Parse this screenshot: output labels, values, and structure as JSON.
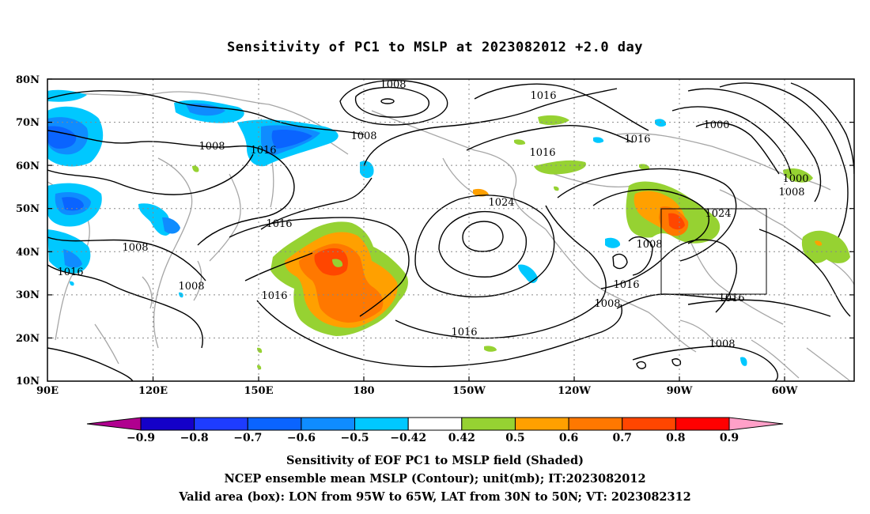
{
  "title": "Sensitivity of PC1 to MSLP at 2023082012 +2.0 day",
  "lat_labels": [
    "80N",
    "70N",
    "60N",
    "50N",
    "40N",
    "30N",
    "20N",
    "10N"
  ],
  "lon_labels": [
    "90E",
    "120E",
    "150E",
    "180",
    "150W",
    "120W",
    "90W",
    "60W"
  ],
  "colorbar": {
    "labels": [
      "-0.9",
      "-0.8",
      "-0.7",
      "-0.6",
      "-0.5",
      "-0.42",
      "0.42",
      "0.5",
      "0.6",
      "0.7",
      "0.8",
      "0.9"
    ],
    "colors": [
      "#b0008f",
      "#1400c8",
      "#1e3cff",
      "#0a64ff",
      "#0f8cff",
      "#00c8ff",
      "#ffffff",
      "#96d232",
      "#ffa000",
      "#ff7800",
      "#ff4600",
      "#ff0000",
      "#ffa0c8"
    ]
  },
  "contour_labels": [
    "1008",
    "1016",
    "1008",
    "1016",
    "1008",
    "1024",
    "1016",
    "1016",
    "1000",
    "1000",
    "1008",
    "1016",
    "1016",
    "1016",
    "1008",
    "1024",
    "1016",
    "1008",
    "1016",
    "1008",
    "1008",
    "1016",
    "1008"
  ],
  "captions": [
    "Sensitivity of EOF PC1 to MSLP field (Shaded)",
    "NCEP ensemble mean MSLP (Contour); unit(mb); IT:2023082012",
    "Valid area (box): LON from 95W to 65W, LAT from 30N to 50N; VT: 2023082312"
  ]
}
